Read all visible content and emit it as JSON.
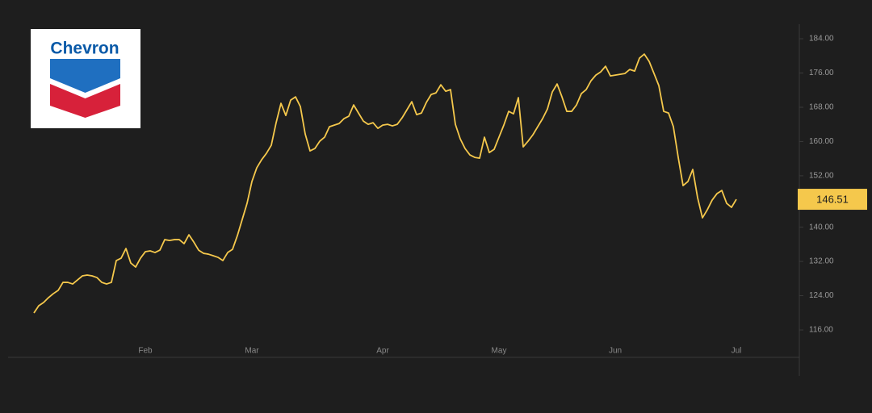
{
  "logo_text": "Chevron",
  "chart_data": {
    "type": "line",
    "categories": [
      null,
      null,
      null,
      null,
      null,
      null,
      null,
      null,
      null,
      null,
      null,
      null,
      null,
      null,
      null,
      null,
      null,
      null,
      null,
      null,
      null,
      null,
      null,
      "Feb",
      null,
      null,
      null,
      null,
      null,
      null,
      null,
      null,
      null,
      null,
      null,
      null,
      null,
      null,
      null,
      null,
      null,
      null,
      null,
      null,
      null,
      "Mar",
      null,
      null,
      null,
      null,
      null,
      null,
      null,
      null,
      null,
      null,
      null,
      null,
      null,
      null,
      null,
      null,
      null,
      null,
      null,
      null,
      null,
      null,
      null,
      null,
      null,
      null,
      "Apr",
      null,
      null,
      null,
      null,
      null,
      null,
      null,
      null,
      null,
      null,
      null,
      null,
      null,
      null,
      null,
      null,
      null,
      null,
      null,
      null,
      null,
      null,
      null,
      "May",
      null,
      null,
      null,
      null,
      null,
      null,
      null,
      null,
      null,
      null,
      null,
      null,
      null,
      null,
      null,
      null,
      null,
      null,
      null,
      null,
      null,
      null,
      null,
      "Jun",
      null,
      null,
      null,
      null,
      null,
      null,
      null,
      null,
      null,
      null,
      null,
      null,
      null,
      null,
      null,
      null,
      null,
      null,
      null,
      null,
      null,
      null,
      null,
      null,
      "Jul"
    ],
    "values": [
      119.95,
      121.65,
      122.4,
      123.53,
      124.47,
      125.23,
      127.11,
      127.11,
      126.73,
      127.68,
      128.62,
      128.81,
      128.62,
      128.24,
      127.11,
      126.73,
      127.11,
      132.2,
      132.76,
      135.02,
      131.63,
      130.69,
      132.76,
      134.27,
      134.46,
      134.08,
      134.64,
      137.09,
      136.9,
      137.09,
      137.09,
      136.15,
      138.22,
      136.53,
      134.64,
      133.89,
      133.7,
      133.33,
      132.95,
      132.2,
      134.08,
      134.83,
      138.03,
      141.8,
      145.57,
      150.65,
      153.85,
      155.74,
      157.24,
      159.13,
      164.4,
      168.92,
      166.09,
      169.67,
      170.43,
      168.17,
      161.76,
      157.81,
      158.37,
      160.07,
      161.01,
      163.46,
      163.83,
      164.21,
      165.34,
      165.91,
      168.54,
      166.66,
      164.78,
      164.02,
      164.4,
      163.08,
      163.83,
      164.02,
      163.65,
      164.02,
      165.53,
      167.41,
      169.3,
      166.28,
      166.66,
      169.11,
      170.99,
      171.37,
      173.25,
      171.74,
      172.12,
      164.02,
      160.63,
      158.37,
      156.87,
      156.3,
      156.11,
      161.01,
      157.43,
      158.18,
      161.01,
      163.83,
      167.04,
      166.47,
      170.24,
      158.75,
      160.07,
      161.57,
      163.46,
      165.34,
      167.6,
      171.56,
      173.44,
      170.43,
      167.04,
      167.04,
      168.54,
      171.18,
      172.12,
      174.19,
      175.51,
      176.26,
      177.58,
      175.32,
      175.51,
      175.7,
      175.89,
      176.83,
      176.45,
      179.47,
      180.41,
      178.71,
      175.89,
      173.06,
      167.04,
      166.66,
      163.46,
      156.3,
      149.71,
      150.65,
      153.48,
      146.89,
      142.18,
      144.06,
      146.32,
      147.83,
      148.58,
      145.57,
      144.63,
      146.51
    ],
    "color": "#f5c84c",
    "ylim": [
      109.6,
      187.4
    ],
    "yticks": [
      {
        "value": 116,
        "label": "116.00"
      },
      {
        "value": 124,
        "label": "124.00"
      },
      {
        "value": 132,
        "label": "132.00"
      },
      {
        "value": 140,
        "label": "140.00"
      },
      {
        "value": 152,
        "label": "152.00"
      },
      {
        "value": 160,
        "label": "160.00"
      },
      {
        "value": 168,
        "label": "168.00"
      },
      {
        "value": 176,
        "label": "176.00"
      },
      {
        "value": 184,
        "label": "184.00"
      }
    ]
  }
}
